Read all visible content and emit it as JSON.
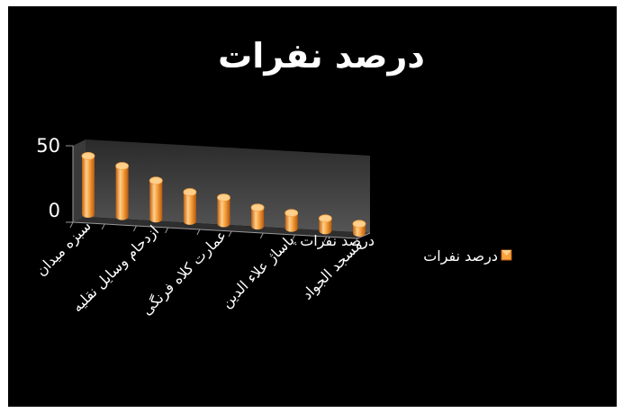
{
  "chart_data": {
    "type": "bar",
    "style": "3d-cylinder",
    "title": "درصد نفرات",
    "categories": [
      "سبزه میدان",
      "",
      "ازدحام وسایل نقلیه",
      "",
      "عمارت کلاه فرنگی",
      "",
      "پاساژ علاء الدین",
      "",
      "مسجد الجواد"
    ],
    "series": [
      {
        "name": "درصد نفرات",
        "values": [
          38,
          33,
          25,
          19,
          17,
          12,
          10,
          8,
          6
        ]
      }
    ],
    "yticks": [
      "0",
      "50"
    ],
    "ylim": [
      0,
      50
    ],
    "depth_axis_label": "درصد نفرات",
    "legend": {
      "position": "right",
      "label": "درصد نفرات"
    },
    "colors": {
      "background": "#000000",
      "bar_light": "#ffcf8c",
      "bar_mid": "#f7a23f",
      "bar_dark": "#c0600e",
      "wall": "#4a4a4a",
      "text": "#ffffff"
    },
    "grid": false
  }
}
